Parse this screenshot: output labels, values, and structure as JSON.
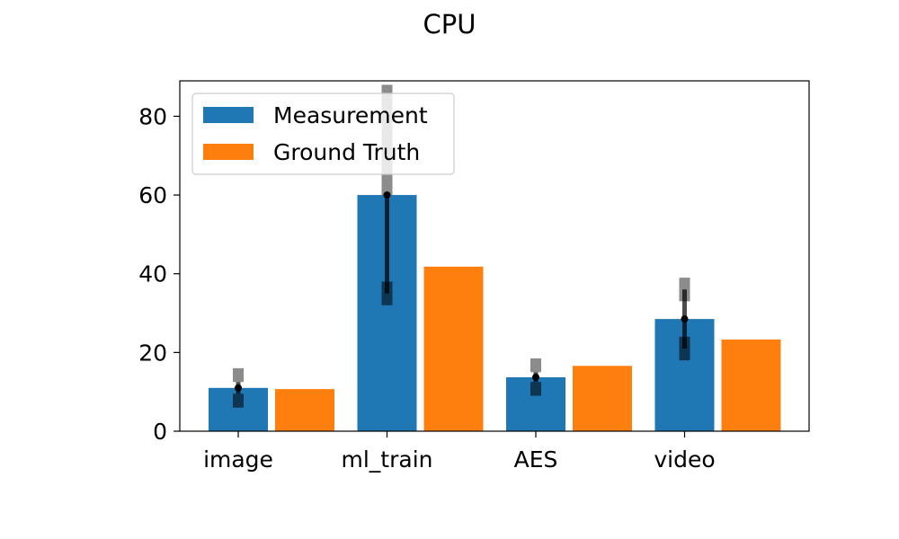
{
  "chart_data": {
    "type": "bar",
    "title": "CPU",
    "xlabel": "",
    "ylabel": "",
    "categories": [
      "image",
      "ml_train",
      "AES",
      "video"
    ],
    "series": [
      {
        "name": "Measurement",
        "color": "#1f77b4",
        "values": [
          11,
          60,
          13.7,
          28.5
        ]
      },
      {
        "name": "Ground Truth",
        "color": "#ff7f0e",
        "values": [
          10.7,
          41.8,
          16.6,
          23.3
        ]
      }
    ],
    "error_bars": [
      {
        "category": "image",
        "center": 11,
        "inner": [
          9.5,
          12.5
        ],
        "outer_low": [
          6,
          9.5
        ],
        "outer_high": [
          12.5,
          16
        ]
      },
      {
        "category": "ml_train",
        "center": 60,
        "inner": [
          35,
          60
        ],
        "outer_low": [
          32,
          38
        ],
        "outer_high": [
          60,
          88
        ]
      },
      {
        "category": "AES",
        "center": 13.7,
        "inner": [
          12.5,
          15
        ],
        "outer_low": [
          9,
          12.5
        ],
        "outer_high": [
          15,
          18.5
        ]
      },
      {
        "category": "video",
        "center": 28.5,
        "inner": [
          21,
          36
        ],
        "outer_low": [
          18,
          24
        ],
        "outer_high": [
          33,
          39
        ]
      }
    ],
    "yticks": [
      0,
      20,
      40,
      60,
      80
    ],
    "ylim": [
      0,
      89
    ],
    "grid": false,
    "legend_position": "top-left"
  }
}
